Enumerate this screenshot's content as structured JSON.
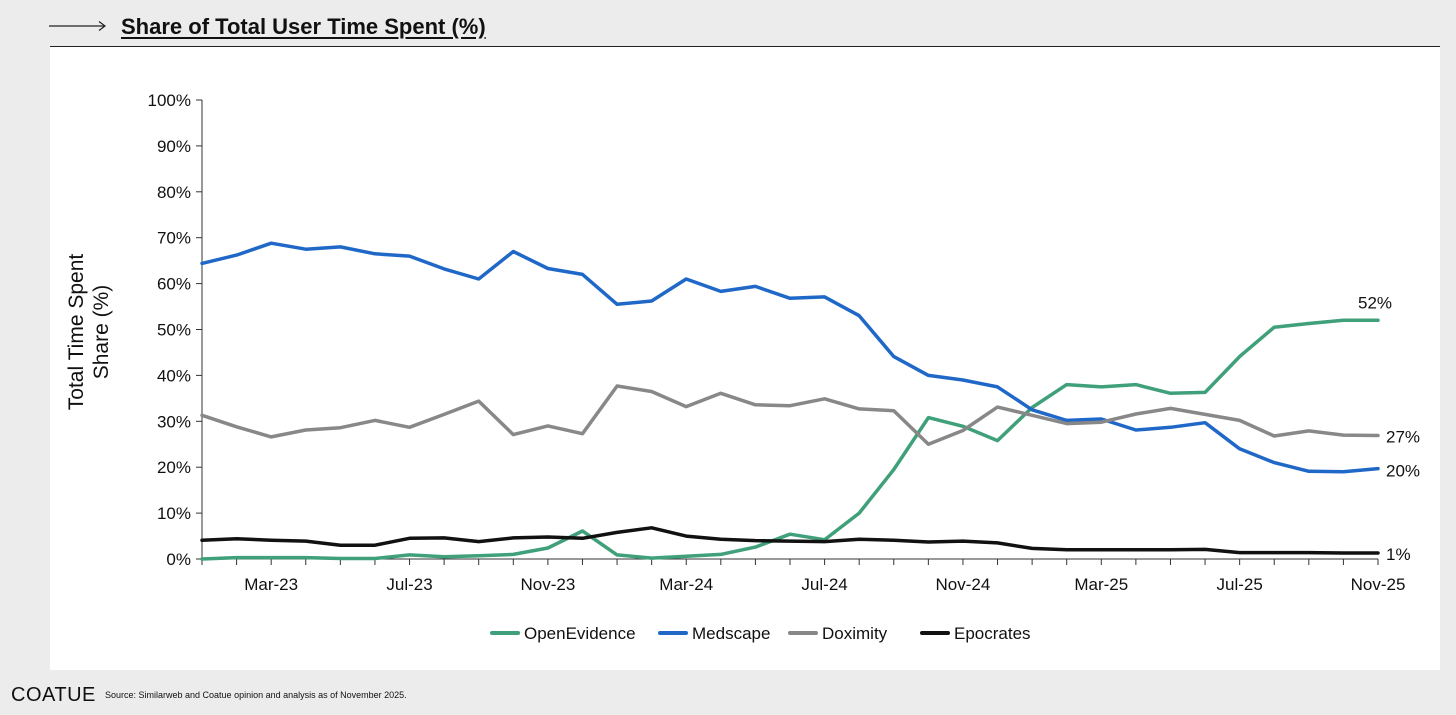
{
  "header": {
    "title": "Share of Total User Time Spent (%)"
  },
  "footer": {
    "logo": "COATUE",
    "source": "Source: Similarweb and Coatue opinion and analysis as of November 2025."
  },
  "chart_data": {
    "type": "line",
    "title": "Share of Total User Time Spent (%)",
    "ylabel_lines": [
      "Total Time Spent",
      "Share (%)"
    ],
    "xlabel": "",
    "ylim": [
      0,
      100
    ],
    "yticks": [
      0,
      10,
      20,
      30,
      40,
      50,
      60,
      70,
      80,
      90,
      100
    ],
    "ytick_labels": [
      "0%",
      "10%",
      "20%",
      "30%",
      "40%",
      "50%",
      "60%",
      "70%",
      "80%",
      "90%",
      "100%"
    ],
    "months": [
      "Jan-23",
      "Feb-23",
      "Mar-23",
      "Apr-23",
      "May-23",
      "Jun-23",
      "Jul-23",
      "Aug-23",
      "Sep-23",
      "Oct-23",
      "Nov-23",
      "Dec-23",
      "Jan-24",
      "Feb-24",
      "Mar-24",
      "Apr-24",
      "May-24",
      "Jun-24",
      "Jul-24",
      "Aug-24",
      "Sep-24",
      "Oct-24",
      "Nov-24",
      "Dec-24",
      "Jan-25",
      "Feb-25",
      "Mar-25",
      "Apr-25",
      "May-25",
      "Jun-25",
      "Jul-25",
      "Aug-25",
      "Sep-25",
      "Oct-25",
      "Nov-25"
    ],
    "xtick_labels": [
      "Mar-23",
      "Jul-23",
      "Nov-23",
      "Mar-24",
      "Jul-24",
      "Nov-24",
      "Mar-25",
      "Jul-25",
      "Nov-25"
    ],
    "xtick_index": [
      2,
      6,
      10,
      14,
      18,
      22,
      26,
      30,
      34
    ],
    "grid": false,
    "legend_position": "bottom",
    "series": [
      {
        "name": "OpenEvidence",
        "color": "#3fa07a",
        "end_label": "52%",
        "values": [
          0.0,
          0.3,
          0.3,
          0.3,
          0.1,
          0.1,
          0.9,
          0.5,
          0.7,
          1.0,
          2.4,
          6.1,
          0.9,
          0.2,
          0.6,
          1.0,
          2.6,
          5.4,
          4.2,
          10.0,
          19.5,
          30.8,
          28.9,
          25.8,
          33.0,
          38.0,
          37.5,
          38.0,
          36.1,
          36.3,
          44.1,
          50.5,
          51.3,
          52.0,
          52.0
        ]
      },
      {
        "name": "Medscape",
        "color": "#2068c8",
        "end_label": "20%",
        "values": [
          64.4,
          66.2,
          68.8,
          67.5,
          68.0,
          66.5,
          66.0,
          63.2,
          61.0,
          67.0,
          63.3,
          62.0,
          55.5,
          56.2,
          61.0,
          58.3,
          59.4,
          56.8,
          57.1,
          53.0,
          44.1,
          40.0,
          39.0,
          37.5,
          32.5,
          30.2,
          30.5,
          28.1,
          28.7,
          29.7,
          24.0,
          21.0,
          19.1,
          19.0,
          19.7
        ]
      },
      {
        "name": "Doximity",
        "color": "#888888",
        "end_label": "27%",
        "values": [
          31.3,
          28.8,
          26.6,
          28.1,
          28.6,
          30.2,
          28.7,
          31.5,
          34.4,
          27.1,
          29.0,
          27.3,
          37.7,
          36.5,
          33.2,
          36.1,
          33.6,
          33.4,
          34.9,
          32.7,
          32.3,
          25.0,
          28.0,
          33.1,
          31.3,
          29.5,
          29.8,
          31.6,
          32.8,
          31.5,
          30.2,
          26.8,
          27.9,
          27.0,
          26.9
        ]
      },
      {
        "name": "Epocrates",
        "color": "#111111",
        "end_label": "1%",
        "values": [
          4.1,
          4.4,
          4.1,
          3.9,
          3.0,
          3.0,
          4.5,
          4.6,
          3.8,
          4.6,
          4.8,
          4.5,
          5.8,
          6.8,
          5.0,
          4.3,
          4.0,
          3.9,
          3.8,
          4.3,
          4.1,
          3.7,
          3.9,
          3.5,
          2.3,
          2.0,
          2.0,
          2.0,
          2.0,
          2.1,
          1.4,
          1.4,
          1.4,
          1.3,
          1.3
        ]
      }
    ]
  }
}
